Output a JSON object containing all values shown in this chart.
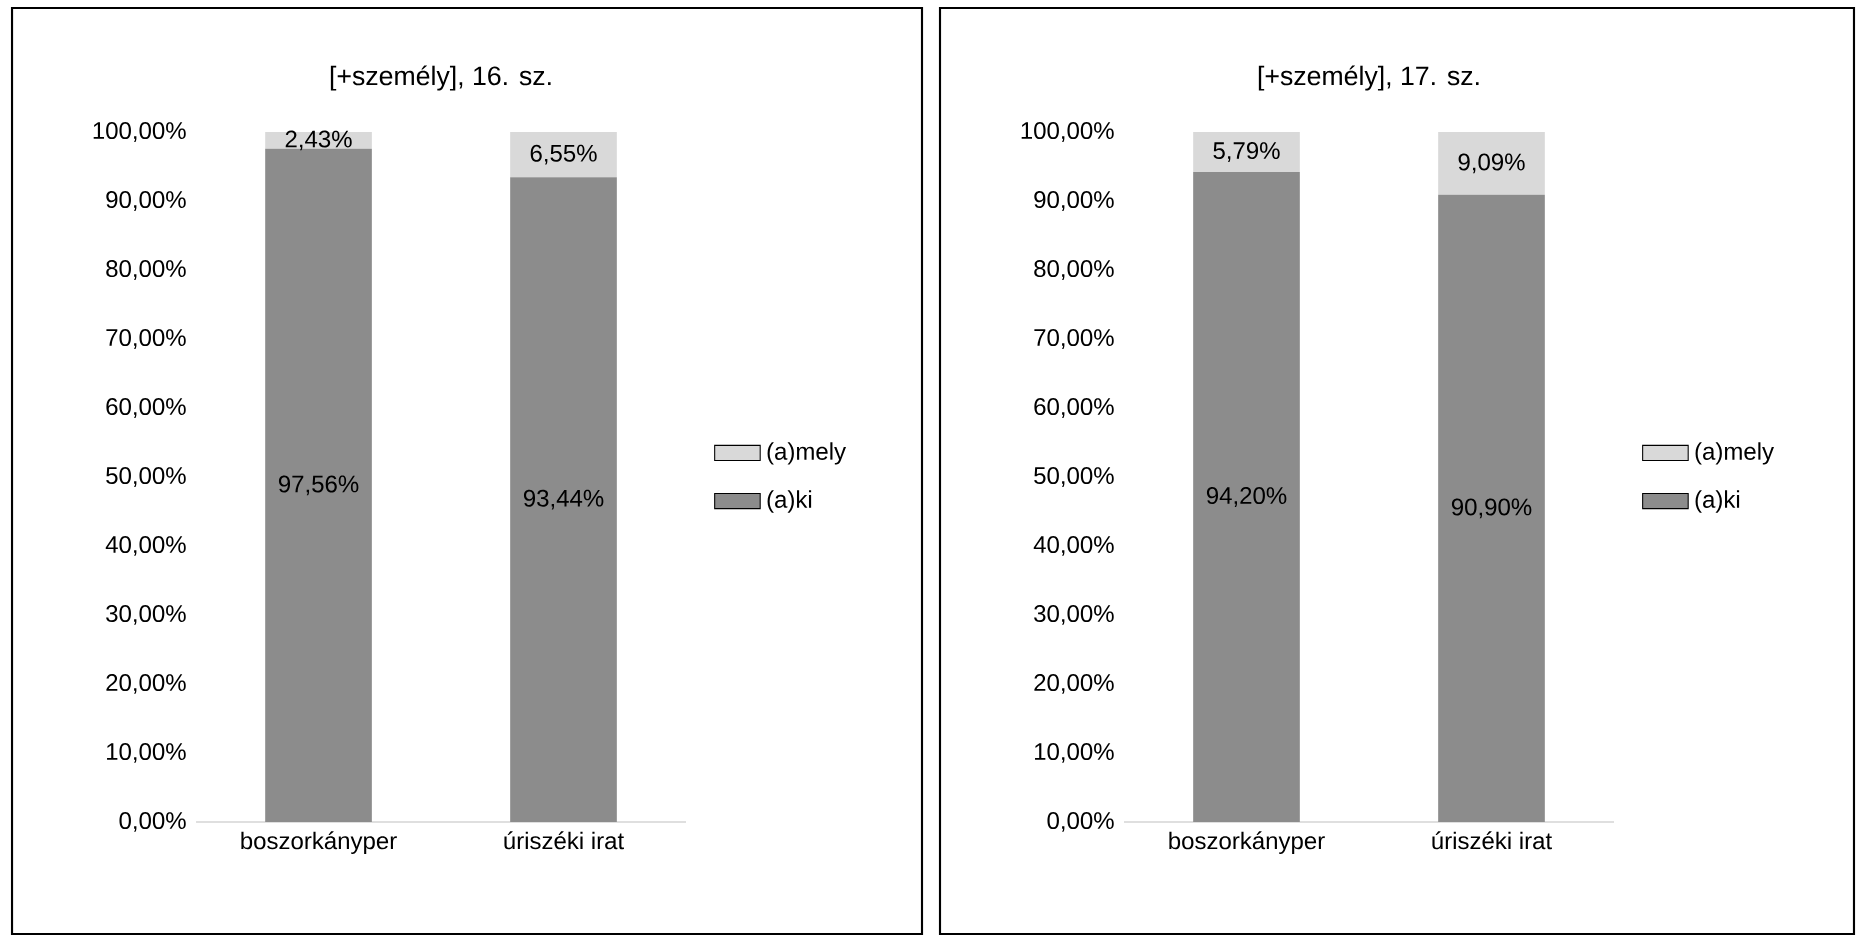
{
  "chart_data": [
    {
      "type": "bar",
      "stacked": true,
      "title": "[+személy], 16. sz.",
      "categories": [
        "boszorkányper",
        "úriszéki irat"
      ],
      "series": [
        {
          "name": "(a)ki",
          "color": "#8c8c8c",
          "values": [
            97.56,
            93.44
          ],
          "value_labels": [
            "97,56%",
            "93,44%"
          ]
        },
        {
          "name": "(a)mely",
          "color": "#d9d9d9",
          "values": [
            2.43,
            6.55
          ],
          "value_labels": [
            "2,43%",
            "6,55%"
          ]
        }
      ],
      "ylim": [
        0,
        100
      ],
      "yticks": [
        {
          "value": 0,
          "label": "0,00%"
        },
        {
          "value": 10,
          "label": "10,00%"
        },
        {
          "value": 20,
          "label": "20,00%"
        },
        {
          "value": 30,
          "label": "30,00%"
        },
        {
          "value": 40,
          "label": "40,00%"
        },
        {
          "value": 50,
          "label": "50,00%"
        },
        {
          "value": 60,
          "label": "60,00%"
        },
        {
          "value": 70,
          "label": "70,00%"
        },
        {
          "value": 80,
          "label": "80,00%"
        },
        {
          "value": 90,
          "label": "90,00%"
        },
        {
          "value": 100,
          "label": "100,00%"
        }
      ],
      "legend": "right"
    },
    {
      "type": "bar",
      "stacked": true,
      "title": "[+személy], 17. sz.",
      "categories": [
        "boszorkányper",
        "úriszéki irat"
      ],
      "series": [
        {
          "name": "(a)ki",
          "color": "#8c8c8c",
          "values": [
            94.2,
            90.9
          ],
          "value_labels": [
            "94,20%",
            "90,90%"
          ]
        },
        {
          "name": "(a)mely",
          "color": "#d9d9d9",
          "values": [
            5.79,
            9.09
          ],
          "value_labels": [
            "5,79%",
            "9,09%"
          ]
        }
      ],
      "ylim": [
        0,
        100
      ],
      "yticks": [
        {
          "value": 0,
          "label": "0,00%"
        },
        {
          "value": 10,
          "label": "10,00%"
        },
        {
          "value": 20,
          "label": "20,00%"
        },
        {
          "value": 30,
          "label": "30,00%"
        },
        {
          "value": 40,
          "label": "40,00%"
        },
        {
          "value": 50,
          "label": "50,00%"
        },
        {
          "value": 60,
          "label": "60,00%"
        },
        {
          "value": 70,
          "label": "70,00%"
        },
        {
          "value": 80,
          "label": "80,00%"
        },
        {
          "value": 90,
          "label": "90,00%"
        },
        {
          "value": 100,
          "label": "100,00%"
        }
      ],
      "legend": "right"
    }
  ]
}
